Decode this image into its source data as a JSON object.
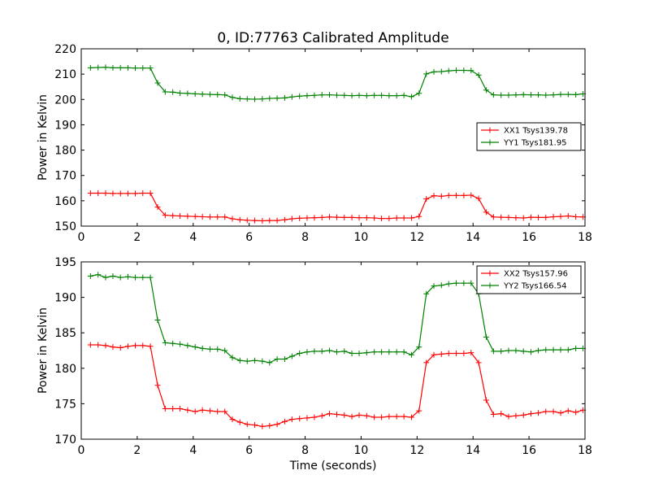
{
  "figure": {
    "title": "0, ID:77763 Calibrated Amplitude",
    "xlabel": "Time (seconds)"
  },
  "chart_data": [
    {
      "type": "line",
      "title": "0, ID:77763 Calibrated Amplitude",
      "xlabel": "",
      "ylabel": "Power in Kelvin",
      "xlim": [
        0,
        18
      ],
      "ylim": [
        150,
        220
      ],
      "xticks": [
        0,
        2,
        4,
        6,
        8,
        10,
        12,
        14,
        16,
        18
      ],
      "yticks": [
        150,
        160,
        170,
        180,
        190,
        200,
        210,
        220
      ],
      "grid": false,
      "legend_position": "center-right",
      "x": [
        0.33,
        0.6,
        0.87,
        1.13,
        1.4,
        1.67,
        1.93,
        2.2,
        2.47,
        2.73,
        3.0,
        3.27,
        3.53,
        3.8,
        4.07,
        4.33,
        4.6,
        4.87,
        5.13,
        5.4,
        5.67,
        5.93,
        6.2,
        6.47,
        6.73,
        7.0,
        7.27,
        7.53,
        7.8,
        8.07,
        8.33,
        8.6,
        8.87,
        9.13,
        9.4,
        9.67,
        9.93,
        10.2,
        10.47,
        10.73,
        11.0,
        11.27,
        11.53,
        11.8,
        12.07,
        12.33,
        12.6,
        12.87,
        13.13,
        13.4,
        13.67,
        13.93,
        14.2,
        14.47,
        14.73,
        15.0,
        15.27,
        15.53,
        15.8,
        16.07,
        16.33,
        16.6,
        16.87,
        17.13,
        17.4,
        17.67,
        17.93
      ],
      "series": [
        {
          "name": "XX1 Tsys139.78",
          "color": "#ff0000",
          "values": [
            163.0,
            163.0,
            163.0,
            162.9,
            162.9,
            162.9,
            162.9,
            163.0,
            163.0,
            157.5,
            154.3,
            154.1,
            154.0,
            153.9,
            153.8,
            153.7,
            153.6,
            153.6,
            153.6,
            152.9,
            152.5,
            152.3,
            152.2,
            152.1,
            152.2,
            152.2,
            152.5,
            152.9,
            153.1,
            153.2,
            153.3,
            153.4,
            153.6,
            153.5,
            153.4,
            153.4,
            153.3,
            153.3,
            153.2,
            153.0,
            153.0,
            153.2,
            153.2,
            153.2,
            153.8,
            160.7,
            162.0,
            161.8,
            162.1,
            162.1,
            162.1,
            162.2,
            160.9,
            155.5,
            153.6,
            153.5,
            153.4,
            153.3,
            153.2,
            153.5,
            153.4,
            153.4,
            153.7,
            153.8,
            154.0,
            153.7,
            153.6
          ]
        },
        {
          "name": "YY1 Tsys181.95",
          "color": "#008000",
          "values": [
            212.5,
            212.6,
            212.7,
            212.5,
            212.5,
            212.5,
            212.4,
            212.4,
            212.4,
            206.5,
            203.0,
            202.9,
            202.5,
            202.4,
            202.2,
            202.1,
            202.0,
            201.9,
            201.8,
            200.8,
            200.3,
            200.2,
            200.1,
            200.2,
            200.4,
            200.5,
            200.6,
            201.0,
            201.3,
            201.5,
            201.6,
            201.8,
            201.8,
            201.7,
            201.6,
            201.5,
            201.6,
            201.5,
            201.6,
            201.6,
            201.5,
            201.5,
            201.6,
            201.1,
            202.4,
            210.1,
            210.9,
            211.0,
            211.3,
            211.5,
            211.5,
            211.4,
            209.6,
            203.7,
            201.8,
            201.7,
            201.7,
            201.8,
            201.9,
            201.8,
            201.8,
            201.7,
            201.8,
            202.0,
            202.0,
            201.9,
            202.2
          ]
        }
      ]
    },
    {
      "type": "line",
      "title": "",
      "xlabel": "Time (seconds)",
      "ylabel": "Power in Kelvin",
      "xlim": [
        0,
        18
      ],
      "ylim": [
        170,
        195
      ],
      "xticks": [
        0,
        2,
        4,
        6,
        8,
        10,
        12,
        14,
        16,
        18
      ],
      "yticks": [
        170,
        175,
        180,
        185,
        190,
        195
      ],
      "grid": false,
      "legend_position": "top-right",
      "x": [
        0.33,
        0.6,
        0.87,
        1.13,
        1.4,
        1.67,
        1.93,
        2.2,
        2.47,
        2.73,
        3.0,
        3.27,
        3.53,
        3.8,
        4.07,
        4.33,
        4.6,
        4.87,
        5.13,
        5.4,
        5.67,
        5.93,
        6.2,
        6.47,
        6.73,
        7.0,
        7.27,
        7.53,
        7.8,
        8.07,
        8.33,
        8.6,
        8.87,
        9.13,
        9.4,
        9.67,
        9.93,
        10.2,
        10.47,
        10.73,
        11.0,
        11.27,
        11.53,
        11.8,
        12.07,
        12.33,
        12.6,
        12.87,
        13.13,
        13.4,
        13.67,
        13.93,
        14.2,
        14.47,
        14.73,
        15.0,
        15.27,
        15.53,
        15.8,
        16.07,
        16.33,
        16.6,
        16.87,
        17.13,
        17.4,
        17.67,
        17.93
      ],
      "series": [
        {
          "name": "XX2 Tsys157.96",
          "color": "#ff0000",
          "values": [
            183.3,
            183.3,
            183.2,
            183.0,
            182.9,
            183.1,
            183.2,
            183.2,
            183.1,
            177.6,
            174.3,
            174.3,
            174.3,
            174.1,
            173.9,
            174.1,
            174.0,
            173.9,
            173.9,
            172.8,
            172.4,
            172.1,
            172.0,
            171.8,
            171.9,
            172.1,
            172.5,
            172.8,
            172.9,
            173.0,
            173.1,
            173.3,
            173.6,
            173.5,
            173.4,
            173.2,
            173.4,
            173.3,
            173.1,
            173.1,
            173.2,
            173.2,
            173.2,
            173.1,
            174.0,
            180.8,
            181.9,
            182.0,
            182.1,
            182.1,
            182.1,
            182.2,
            180.8,
            175.5,
            173.5,
            173.6,
            173.2,
            173.3,
            173.4,
            173.6,
            173.7,
            173.9,
            173.9,
            173.7,
            174.0,
            173.8,
            174.1
          ]
        },
        {
          "name": "YY2 Tsys166.54",
          "color": "#008000",
          "values": [
            193.0,
            193.2,
            192.8,
            193.0,
            192.8,
            192.9,
            192.8,
            192.8,
            192.8,
            186.8,
            183.6,
            183.5,
            183.4,
            183.2,
            183.0,
            182.8,
            182.7,
            182.7,
            182.5,
            181.5,
            181.1,
            181.0,
            181.1,
            181.0,
            180.8,
            181.3,
            181.3,
            181.7,
            182.1,
            182.3,
            182.4,
            182.4,
            182.5,
            182.3,
            182.4,
            182.1,
            182.1,
            182.2,
            182.3,
            182.3,
            182.3,
            182.3,
            182.3,
            181.9,
            183.0,
            190.5,
            191.6,
            191.7,
            191.9,
            192.0,
            192.0,
            192.0,
            190.5,
            184.4,
            182.4,
            182.4,
            182.5,
            182.5,
            182.4,
            182.3,
            182.5,
            182.6,
            182.6,
            182.6,
            182.6,
            182.8,
            182.8
          ]
        }
      ]
    }
  ]
}
